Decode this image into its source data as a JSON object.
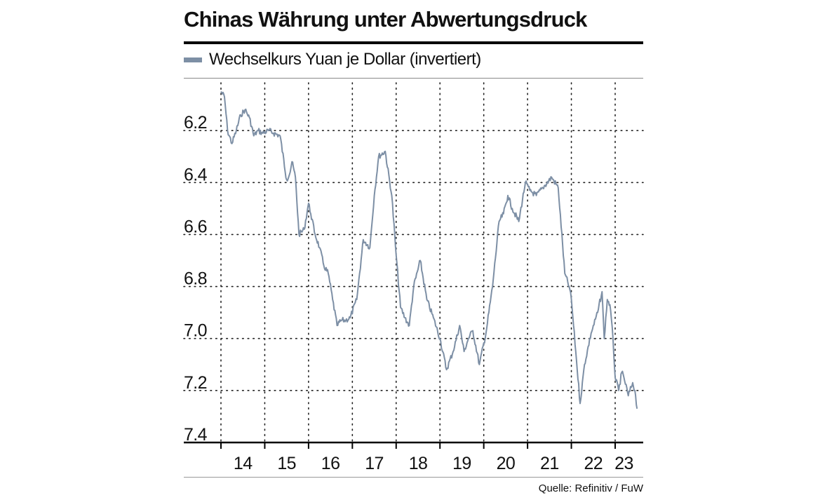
{
  "header": {
    "title": "Chinas Währung unter Abwertungsdruck"
  },
  "legend": {
    "label": "Wechselkurs Yuan je Dollar (invertiert)",
    "color": "#7d8fa5"
  },
  "footer": {
    "source": "Quelle: Refinitiv / FuW"
  },
  "chart_data": {
    "type": "line",
    "title": "Chinas Währung unter Abwertungsdruck",
    "xlabel": "",
    "ylabel": "",
    "inverted_y": true,
    "ylim": [
      6.0,
      7.4
    ],
    "xlim": [
      2013.5,
      2023.7
    ],
    "yticks": [
      6.2,
      6.4,
      6.6,
      6.8,
      7.0,
      7.2,
      7.4
    ],
    "ytick_labels": [
      "6.2",
      "6.4",
      "6.6",
      "6.8",
      "7.0",
      "7.2",
      "7.4"
    ],
    "xticks": [
      2014.5,
      2015.5,
      2016.5,
      2017.5,
      2018.5,
      2019.5,
      2020.5,
      2021.5,
      2022.5,
      2023.2
    ],
    "xtick_labels": [
      "14",
      "15",
      "16",
      "17",
      "18",
      "19",
      "20",
      "21",
      "22",
      "23"
    ],
    "grid_x": [
      2014,
      2015,
      2016,
      2017,
      2018,
      2019,
      2020,
      2021,
      2022,
      2023
    ],
    "grid": true,
    "series": [
      {
        "name": "Wechselkurs Yuan je Dollar (invertiert)",
        "color": "#7d8fa5",
        "x": [
          2014.0,
          2014.08,
          2014.15,
          2014.25,
          2014.35,
          2014.45,
          2014.55,
          2014.65,
          2014.75,
          2014.85,
          2014.95,
          2015.1,
          2015.2,
          2015.35,
          2015.5,
          2015.58,
          2015.62,
          2015.7,
          2015.78,
          2015.9,
          2016.0,
          2016.05,
          2016.15,
          2016.25,
          2016.35,
          2016.45,
          2016.55,
          2016.65,
          2016.75,
          2016.85,
          2016.95,
          2017.1,
          2017.25,
          2017.4,
          2017.5,
          2017.6,
          2017.75,
          2017.9,
          2018.0,
          2018.1,
          2018.2,
          2018.3,
          2018.4,
          2018.55,
          2018.7,
          2018.85,
          2019.0,
          2019.15,
          2019.3,
          2019.45,
          2019.55,
          2019.65,
          2019.75,
          2019.9,
          2020.05,
          2020.2,
          2020.35,
          2020.45,
          2020.55,
          2020.65,
          2020.8,
          2020.95,
          2021.05,
          2021.2,
          2021.35,
          2021.55,
          2021.7,
          2021.85,
          2021.95,
          2022.0,
          2022.1,
          2022.2,
          2022.3,
          2022.45,
          2022.6,
          2022.7,
          2022.75,
          2022.82,
          2022.88,
          2022.95,
          2023.0,
          2023.08,
          2023.15,
          2023.2,
          2023.3,
          2023.4,
          2023.45,
          2023.5
        ],
        "values": [
          6.05,
          6.07,
          6.2,
          6.25,
          6.2,
          6.14,
          6.12,
          6.15,
          6.22,
          6.2,
          6.21,
          6.2,
          6.21,
          6.22,
          6.39,
          6.36,
          6.32,
          6.38,
          6.6,
          6.58,
          6.48,
          6.52,
          6.6,
          6.65,
          6.72,
          6.75,
          6.85,
          6.95,
          6.93,
          6.93,
          6.92,
          6.85,
          6.62,
          6.65,
          6.45,
          6.3,
          6.28,
          6.45,
          6.68,
          6.88,
          6.92,
          6.95,
          6.8,
          6.7,
          6.85,
          6.92,
          7.0,
          7.12,
          7.05,
          6.95,
          7.05,
          7.0,
          6.97,
          7.1,
          6.98,
          6.8,
          6.55,
          6.52,
          6.45,
          6.5,
          6.55,
          6.4,
          6.43,
          6.45,
          6.42,
          6.38,
          6.42,
          6.75,
          6.8,
          6.85,
          7.05,
          7.25,
          7.1,
          6.98,
          6.9,
          6.82,
          7.0,
          6.85,
          6.87,
          7.0,
          7.15,
          7.2,
          7.13,
          7.15,
          7.22,
          7.17,
          7.2,
          7.27
        ]
      }
    ]
  }
}
